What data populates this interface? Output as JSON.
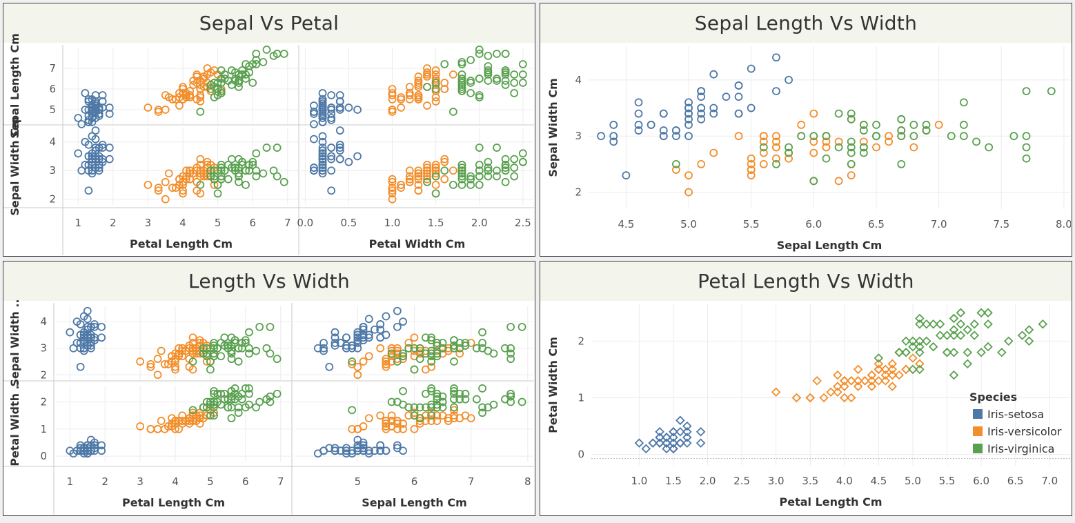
{
  "colors": {
    "Iris-setosa": "#4e79a7",
    "Iris-versicolor": "#f28e2b",
    "Iris-virginica": "#59a14f"
  },
  "panels": {
    "p1": {
      "title": "Sepal Vs Petal"
    },
    "p2": {
      "title": "Sepal Length Vs Width"
    },
    "p3": {
      "title": "Length Vs Width"
    },
    "p4": {
      "title": "Petal Length Vs Width"
    }
  },
  "legend": {
    "title": "Species",
    "items": [
      "Iris-setosa",
      "Iris-versicolor",
      "Iris-virginica"
    ]
  },
  "chart_data": [
    {
      "type": "scatter",
      "title": "Sepal Vs Petal",
      "rows": [
        {
          "label": "Sepal Length Cm",
          "field": "sl",
          "ylim": [
            4.3,
            8.0
          ],
          "ticks": [
            5,
            6,
            7
          ]
        },
        {
          "label": "Sepal Width Cm",
          "field": "sw",
          "ylim": [
            1.8,
            4.5
          ],
          "ticks": [
            2,
            3,
            4
          ]
        }
      ],
      "cols": [
        {
          "label": "Petal Length Cm",
          "field": "pl",
          "xlim": [
            0.6,
            7.3
          ],
          "ticks": [
            1,
            2,
            3,
            4,
            5,
            6,
            7
          ]
        },
        {
          "label": "Petal Width Cm",
          "field": "pw",
          "xlim": [
            -0.05,
            2.62
          ],
          "ticks": [
            "0.0",
            "0.5",
            "1.0",
            "1.5",
            "2.0",
            "2.5"
          ]
        }
      ]
    },
    {
      "type": "scatter",
      "title": "Sepal Length Vs Width",
      "x": "sl",
      "y": "sw",
      "xlabel": "Sepal Length Cm",
      "ylabel": "Sepal Width Cm",
      "xlim": [
        4.2,
        8.05
      ],
      "ylim": [
        1.7,
        4.6
      ],
      "xticks": [
        "4.5",
        "5.0",
        "5.5",
        "6.0",
        "6.5",
        "7.0",
        "7.5",
        "8.0"
      ],
      "yticks": [
        2,
        3,
        4
      ]
    },
    {
      "type": "scatter",
      "title": "Length Vs Width",
      "rows": [
        {
          "label": "Sepal Width ..",
          "field": "sw",
          "ylim": [
            1.8,
            4.6
          ],
          "ticks": [
            2,
            3,
            4
          ]
        },
        {
          "label": "Petal Width ..",
          "field": "pw",
          "ylim": [
            -0.2,
            2.6
          ],
          "ticks": [
            0,
            1,
            2
          ]
        }
      ],
      "cols": [
        {
          "label": "Petal Length Cm",
          "field": "pl",
          "xlim": [
            0.6,
            7.3
          ],
          "ticks": [
            1,
            2,
            3,
            4,
            5,
            6,
            7
          ]
        },
        {
          "label": "Sepal Length Cm",
          "field": "sl",
          "xlim": [
            3.9,
            8.1
          ],
          "ticks": [
            5,
            6,
            7,
            8
          ]
        }
      ]
    },
    {
      "type": "scatter",
      "title": "Petal Length Vs Width",
      "marker": "diamond",
      "x": "pl",
      "y": "pw",
      "xlabel": "Petal Length Cm",
      "ylabel": "Petal Width Cm",
      "xlim": [
        0.3,
        7.3
      ],
      "ylim": [
        -0.2,
        2.65
      ],
      "xticks": [
        "1.0",
        "1.5",
        "2.0",
        "2.5",
        "3.0",
        "3.5",
        "4.0",
        "4.5",
        "5.0",
        "5.5",
        "6.0",
        "6.5",
        "7.0"
      ],
      "yticks": [
        0,
        1,
        2
      ]
    }
  ],
  "iris": {
    "fields": [
      "sl",
      "sw",
      "pl",
      "pw"
    ],
    "Iris-setosa": [
      [
        5.1,
        3.5,
        1.4,
        0.2
      ],
      [
        4.9,
        3.0,
        1.4,
        0.2
      ],
      [
        4.7,
        3.2,
        1.3,
        0.2
      ],
      [
        4.6,
        3.1,
        1.5,
        0.2
      ],
      [
        5.0,
        3.6,
        1.4,
        0.2
      ],
      [
        5.4,
        3.9,
        1.7,
        0.4
      ],
      [
        4.6,
        3.4,
        1.4,
        0.3
      ],
      [
        5.0,
        3.4,
        1.5,
        0.2
      ],
      [
        4.4,
        2.9,
        1.4,
        0.2
      ],
      [
        4.9,
        3.1,
        1.5,
        0.1
      ],
      [
        5.4,
        3.7,
        1.5,
        0.2
      ],
      [
        4.8,
        3.4,
        1.6,
        0.2
      ],
      [
        4.8,
        3.0,
        1.4,
        0.1
      ],
      [
        4.3,
        3.0,
        1.1,
        0.1
      ],
      [
        5.8,
        4.0,
        1.2,
        0.2
      ],
      [
        5.7,
        4.4,
        1.5,
        0.4
      ],
      [
        5.4,
        3.9,
        1.3,
        0.4
      ],
      [
        5.1,
        3.5,
        1.4,
        0.3
      ],
      [
        5.7,
        3.8,
        1.7,
        0.3
      ],
      [
        5.1,
        3.8,
        1.5,
        0.3
      ],
      [
        5.4,
        3.4,
        1.7,
        0.2
      ],
      [
        5.1,
        3.7,
        1.5,
        0.4
      ],
      [
        4.6,
        3.6,
        1.0,
        0.2
      ],
      [
        5.1,
        3.3,
        1.7,
        0.5
      ],
      [
        4.8,
        3.4,
        1.9,
        0.2
      ],
      [
        5.0,
        3.0,
        1.6,
        0.2
      ],
      [
        5.0,
        3.4,
        1.6,
        0.4
      ],
      [
        5.2,
        3.5,
        1.5,
        0.2
      ],
      [
        5.2,
        3.4,
        1.4,
        0.2
      ],
      [
        4.7,
        3.2,
        1.6,
        0.2
      ],
      [
        4.8,
        3.1,
        1.6,
        0.2
      ],
      [
        5.4,
        3.4,
        1.5,
        0.4
      ],
      [
        5.2,
        4.1,
        1.5,
        0.1
      ],
      [
        5.5,
        4.2,
        1.4,
        0.2
      ],
      [
        4.9,
        3.1,
        1.5,
        0.1
      ],
      [
        5.0,
        3.2,
        1.2,
        0.2
      ],
      [
        5.5,
        3.5,
        1.3,
        0.2
      ],
      [
        4.4,
        3.0,
        1.3,
        0.2
      ],
      [
        5.1,
        3.4,
        1.5,
        0.2
      ],
      [
        5.0,
        3.5,
        1.3,
        0.3
      ],
      [
        4.5,
        2.3,
        1.3,
        0.3
      ],
      [
        4.4,
        3.2,
        1.3,
        0.2
      ],
      [
        5.0,
        3.5,
        1.6,
        0.6
      ],
      [
        5.1,
        3.8,
        1.9,
        0.4
      ],
      [
        4.8,
        3.0,
        1.4,
        0.3
      ],
      [
        5.1,
        3.8,
        1.6,
        0.2
      ],
      [
        4.6,
        3.2,
        1.4,
        0.2
      ],
      [
        5.3,
        3.7,
        1.5,
        0.2
      ],
      [
        5.0,
        3.3,
        1.4,
        0.2
      ]
    ],
    "Iris-versicolor": [
      [
        7.0,
        3.2,
        4.7,
        1.4
      ],
      [
        6.4,
        3.2,
        4.5,
        1.5
      ],
      [
        6.9,
        3.1,
        4.9,
        1.5
      ],
      [
        5.5,
        2.3,
        4.0,
        1.3
      ],
      [
        6.5,
        2.8,
        4.6,
        1.5
      ],
      [
        5.7,
        2.8,
        4.5,
        1.3
      ],
      [
        6.3,
        3.3,
        4.7,
        1.6
      ],
      [
        4.9,
        2.4,
        3.3,
        1.0
      ],
      [
        6.6,
        2.9,
        4.6,
        1.3
      ],
      [
        5.2,
        2.7,
        3.9,
        1.4
      ],
      [
        5.0,
        2.0,
        3.5,
        1.0
      ],
      [
        5.9,
        3.0,
        4.2,
        1.5
      ],
      [
        6.0,
        2.2,
        4.0,
        1.0
      ],
      [
        6.1,
        2.9,
        4.7,
        1.4
      ],
      [
        5.6,
        2.9,
        3.6,
        1.3
      ],
      [
        6.7,
        3.1,
        4.4,
        1.4
      ],
      [
        5.6,
        3.0,
        4.5,
        1.5
      ],
      [
        5.8,
        2.7,
        4.1,
        1.0
      ],
      [
        6.2,
        2.2,
        4.5,
        1.5
      ],
      [
        5.6,
        2.5,
        3.9,
        1.1
      ],
      [
        5.9,
        3.2,
        4.8,
        1.8
      ],
      [
        6.1,
        2.8,
        4.0,
        1.3
      ],
      [
        6.3,
        2.5,
        4.9,
        1.5
      ],
      [
        6.1,
        2.8,
        4.7,
        1.2
      ],
      [
        6.4,
        2.9,
        4.3,
        1.3
      ],
      [
        6.6,
        3.0,
        4.4,
        1.4
      ],
      [
        6.8,
        2.8,
        4.8,
        1.4
      ],
      [
        6.7,
        3.0,
        5.0,
        1.7
      ],
      [
        6.0,
        2.9,
        4.5,
        1.5
      ],
      [
        5.7,
        2.6,
        3.5,
        1.0
      ],
      [
        5.5,
        2.4,
        3.8,
        1.1
      ],
      [
        5.5,
        2.4,
        3.7,
        1.0
      ],
      [
        5.8,
        2.7,
        3.9,
        1.2
      ],
      [
        6.0,
        2.7,
        5.1,
        1.6
      ],
      [
        5.4,
        3.0,
        4.5,
        1.5
      ],
      [
        6.0,
        3.4,
        4.5,
        1.6
      ],
      [
        6.7,
        3.1,
        4.7,
        1.5
      ],
      [
        6.3,
        2.3,
        4.4,
        1.3
      ],
      [
        5.6,
        3.0,
        4.1,
        1.3
      ],
      [
        5.5,
        2.5,
        4.0,
        1.3
      ],
      [
        5.5,
        2.6,
        4.4,
        1.2
      ],
      [
        6.1,
        3.0,
        4.6,
        1.4
      ],
      [
        5.8,
        2.6,
        4.0,
        1.2
      ],
      [
        5.0,
        2.3,
        3.3,
        1.0
      ],
      [
        5.6,
        2.7,
        4.2,
        1.3
      ],
      [
        5.7,
        3.0,
        4.2,
        1.2
      ],
      [
        5.7,
        2.9,
        4.2,
        1.3
      ],
      [
        6.2,
        2.9,
        4.3,
        1.3
      ],
      [
        5.1,
        2.5,
        3.0,
        1.1
      ],
      [
        5.7,
        2.8,
        4.1,
        1.3
      ]
    ],
    "Iris-virginica": [
      [
        6.3,
        3.3,
        6.0,
        2.5
      ],
      [
        5.8,
        2.7,
        5.1,
        1.9
      ],
      [
        7.1,
        3.0,
        5.9,
        2.1
      ],
      [
        6.3,
        2.9,
        5.6,
        1.8
      ],
      [
        6.5,
        3.0,
        5.8,
        2.2
      ],
      [
        7.6,
        3.0,
        6.6,
        2.1
      ],
      [
        4.9,
        2.5,
        4.5,
        1.7
      ],
      [
        7.3,
        2.9,
        6.3,
        1.8
      ],
      [
        6.7,
        2.5,
        5.8,
        1.8
      ],
      [
        7.2,
        3.6,
        6.1,
        2.5
      ],
      [
        6.5,
        3.2,
        5.1,
        2.0
      ],
      [
        6.4,
        2.7,
        5.3,
        1.9
      ],
      [
        6.8,
        3.0,
        5.5,
        2.1
      ],
      [
        5.7,
        2.5,
        5.0,
        2.0
      ],
      [
        5.8,
        2.8,
        5.1,
        2.4
      ],
      [
        6.4,
        3.2,
        5.3,
        2.3
      ],
      [
        6.5,
        3.0,
        5.5,
        1.8
      ],
      [
        7.7,
        3.8,
        6.7,
        2.2
      ],
      [
        7.7,
        2.6,
        6.9,
        2.3
      ],
      [
        6.0,
        2.2,
        5.0,
        1.5
      ],
      [
        6.9,
        3.2,
        5.7,
        2.3
      ],
      [
        5.6,
        2.8,
        4.9,
        2.0
      ],
      [
        7.7,
        2.8,
        6.7,
        2.0
      ],
      [
        6.3,
        2.7,
        4.9,
        1.8
      ],
      [
        6.7,
        3.3,
        5.7,
        2.1
      ],
      [
        7.2,
        3.2,
        6.0,
        1.8
      ],
      [
        6.2,
        2.8,
        4.8,
        1.8
      ],
      [
        6.1,
        3.0,
        4.9,
        1.8
      ],
      [
        6.4,
        2.8,
        5.6,
        2.1
      ],
      [
        7.2,
        3.0,
        5.8,
        1.6
      ],
      [
        7.4,
        2.8,
        6.1,
        1.9
      ],
      [
        7.9,
        3.8,
        6.4,
        2.0
      ],
      [
        6.4,
        2.8,
        5.6,
        2.2
      ],
      [
        6.3,
        2.8,
        5.1,
        1.5
      ],
      [
        6.1,
        2.6,
        5.6,
        1.4
      ],
      [
        7.7,
        3.0,
        6.1,
        2.3
      ],
      [
        6.3,
        3.4,
        5.6,
        2.4
      ],
      [
        6.4,
        3.1,
        5.5,
        1.8
      ],
      [
        6.0,
        3.0,
        4.8,
        1.8
      ],
      [
        6.9,
        3.1,
        5.4,
        2.1
      ],
      [
        6.7,
        3.1,
        5.6,
        2.4
      ],
      [
        6.9,
        3.1,
        5.1,
        2.3
      ],
      [
        6.8,
        3.2,
        5.9,
        2.3
      ],
      [
        6.7,
        3.3,
        5.7,
        2.5
      ],
      [
        6.7,
        3.0,
        5.2,
        2.3
      ],
      [
        6.3,
        2.5,
        5.0,
        1.9
      ],
      [
        6.5,
        3.0,
        5.2,
        2.0
      ],
      [
        6.2,
        3.4,
        5.4,
        2.3
      ],
      [
        5.9,
        3.0,
        5.1,
        1.8
      ]
    ]
  }
}
